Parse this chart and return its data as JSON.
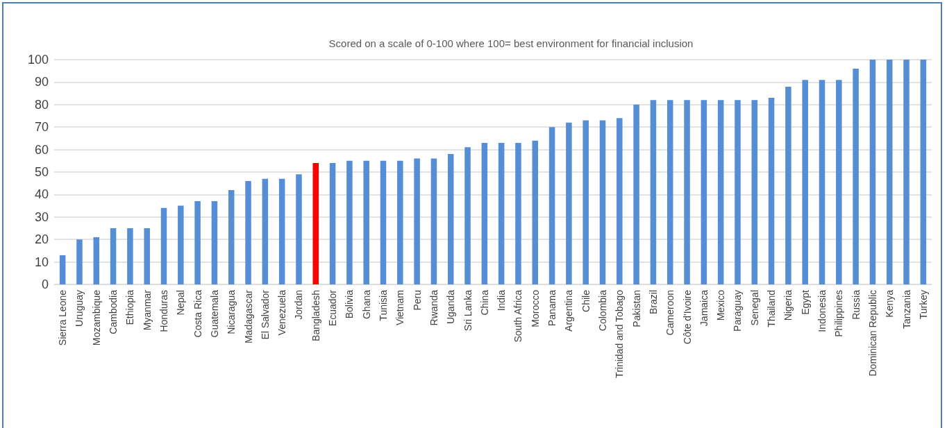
{
  "chart_data": {
    "type": "bar",
    "title": "Scored on a scale of 0-100 where 100= best environment for financial inclusion",
    "categories": [
      "Sierra Leone",
      "Uruguay",
      "Mozambique",
      "Cambodia",
      "Ethiopia",
      "Myanmar",
      "Honduras",
      "Nepal",
      "Costa Rica",
      "Guatemala",
      "Nicaragua",
      "Madagascar",
      "El Salvador",
      "Venezuela",
      "Jordan",
      "Bangladesh",
      "Ecuador",
      "Bolivia",
      "Ghana",
      "Tunisia",
      "Vietnam",
      "Peru",
      "Rwanda",
      "Uganda",
      "Sri Lanka",
      "China",
      "India",
      "South Africa",
      "Morocco",
      "Panama",
      "Argentina",
      "Chile",
      "Colombia",
      "Trinidad and Tobago",
      "Pakistan",
      "Brazil",
      "Cameroon",
      "Côte d'Ivoire",
      "Jamaica",
      "Mexico",
      "Paraguay",
      "Senegal",
      "Thailand",
      "Nigeria",
      "Egypt",
      "Indonesia",
      "Philippines",
      "Russia",
      "Dominican Republic",
      "Kenya",
      "Tanzania",
      "Turkey"
    ],
    "values": [
      13,
      20,
      21,
      25,
      25,
      25,
      34,
      35,
      37,
      37,
      42,
      46,
      47,
      47,
      49,
      54,
      54,
      55,
      55,
      55,
      55,
      56,
      56,
      58,
      61,
      63,
      63,
      63,
      64,
      70,
      72,
      73,
      73,
      74,
      80,
      82,
      82,
      82,
      82,
      82,
      82,
      82,
      83,
      88,
      91,
      91,
      91,
      96,
      100,
      100,
      100,
      100
    ],
    "colors": [
      "#558ed5",
      "#558ed5",
      "#558ed5",
      "#558ed5",
      "#558ed5",
      "#558ed5",
      "#558ed5",
      "#558ed5",
      "#558ed5",
      "#558ed5",
      "#558ed5",
      "#558ed5",
      "#558ed5",
      "#558ed5",
      "#558ed5",
      "#ff0000",
      "#558ed5",
      "#558ed5",
      "#558ed5",
      "#558ed5",
      "#558ed5",
      "#558ed5",
      "#558ed5",
      "#558ed5",
      "#558ed5",
      "#558ed5",
      "#558ed5",
      "#558ed5",
      "#558ed5",
      "#558ed5",
      "#558ed5",
      "#558ed5",
      "#558ed5",
      "#558ed5",
      "#558ed5",
      "#558ed5",
      "#558ed5",
      "#558ed5",
      "#558ed5",
      "#558ed5",
      "#558ed5",
      "#558ed5",
      "#558ed5",
      "#558ed5",
      "#558ed5",
      "#558ed5",
      "#558ed5",
      "#558ed5",
      "#558ed5",
      "#558ed5",
      "#558ed5",
      "#558ed5"
    ],
    "ylim": [
      0,
      100
    ],
    "yticks": [
      0,
      10,
      20,
      30,
      40,
      50,
      60,
      70,
      80,
      90,
      100
    ],
    "grid": "y"
  }
}
